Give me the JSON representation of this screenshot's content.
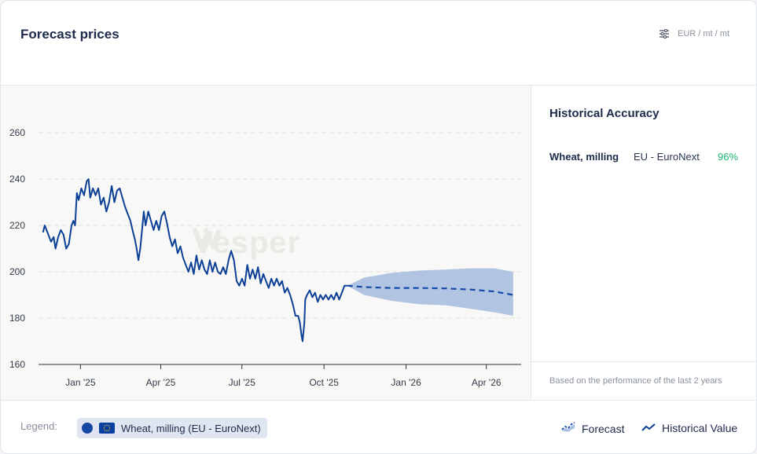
{
  "header": {
    "title": "Forecast prices",
    "unit": "EUR / mt / mt",
    "settings_icon": "sliders-icon"
  },
  "side": {
    "title": "Historical Accuracy",
    "row": {
      "name": "Wheat, milling",
      "market": "EU - EuroNext",
      "value": "96%"
    },
    "note": "Based on the performance of the last 2 years"
  },
  "watermark": {
    "text": "Vesper",
    "icon": "vesper-logo-icon"
  },
  "legend": {
    "label": "Legend:",
    "item": "Wheat, milling (EU - EuroNext)",
    "forecast_label": "Forecast",
    "history_label": "Historical Value"
  },
  "colors": {
    "history": "#0c3f96",
    "forecast_line": "#174aa6",
    "band": "#a9bfe1",
    "accuracy_good": "#22b573"
  },
  "chart_data": {
    "type": "line",
    "title": "",
    "xlabel": "",
    "ylabel": "",
    "ylim": [
      160,
      260
    ],
    "yticks": [
      160,
      180,
      200,
      220,
      240,
      260
    ],
    "xlim": [
      "2024-11-15",
      "2026-05-10"
    ],
    "xticks": [
      {
        "date": "2025-01-01",
        "label": "Jan '25"
      },
      {
        "date": "2025-04-01",
        "label": "Apr '25"
      },
      {
        "date": "2025-07-01",
        "label": "Jul '25"
      },
      {
        "date": "2025-10-01",
        "label": "Oct '25"
      },
      {
        "date": "2026-01-01",
        "label": "Jan '26"
      },
      {
        "date": "2026-04-01",
        "label": "Apr '26"
      }
    ],
    "grid": "horizontal",
    "series": [
      {
        "name": "Historical Value",
        "style": "solid",
        "points": [
          [
            "2024-11-20",
            217
          ],
          [
            "2024-11-22",
            220
          ],
          [
            "2024-11-26",
            216
          ],
          [
            "2024-11-29",
            213
          ],
          [
            "2024-12-02",
            215
          ],
          [
            "2024-12-04",
            210
          ],
          [
            "2024-12-07",
            215
          ],
          [
            "2024-12-10",
            218
          ],
          [
            "2024-12-13",
            216
          ],
          [
            "2024-12-16",
            210
          ],
          [
            "2024-12-19",
            212
          ],
          [
            "2024-12-22",
            220
          ],
          [
            "2024-12-24",
            222
          ],
          [
            "2024-12-26",
            220
          ],
          [
            "2024-12-28",
            234
          ],
          [
            "2024-12-30",
            231
          ],
          [
            "2025-01-02",
            236
          ],
          [
            "2025-01-05",
            233
          ],
          [
            "2025-01-08",
            239
          ],
          [
            "2025-01-10",
            240
          ],
          [
            "2025-01-12",
            232
          ],
          [
            "2025-01-15",
            236
          ],
          [
            "2025-01-18",
            233
          ],
          [
            "2025-01-21",
            236
          ],
          [
            "2025-01-24",
            229
          ],
          [
            "2025-01-27",
            232
          ],
          [
            "2025-01-30",
            226
          ],
          [
            "2025-02-02",
            230
          ],
          [
            "2025-02-05",
            237
          ],
          [
            "2025-02-08",
            230
          ],
          [
            "2025-02-11",
            235
          ],
          [
            "2025-02-14",
            236
          ],
          [
            "2025-02-17",
            232
          ],
          [
            "2025-02-20",
            228
          ],
          [
            "2025-02-23",
            225
          ],
          [
            "2025-02-26",
            222
          ],
          [
            "2025-03-01",
            217
          ],
          [
            "2025-03-03",
            214
          ],
          [
            "2025-03-05",
            210
          ],
          [
            "2025-03-07",
            205
          ],
          [
            "2025-03-09",
            210
          ],
          [
            "2025-03-11",
            218
          ],
          [
            "2025-03-13",
            226
          ],
          [
            "2025-03-15",
            220
          ],
          [
            "2025-03-18",
            226
          ],
          [
            "2025-03-21",
            222
          ],
          [
            "2025-03-24",
            218
          ],
          [
            "2025-03-27",
            222
          ],
          [
            "2025-03-30",
            218
          ],
          [
            "2025-04-02",
            224
          ],
          [
            "2025-04-05",
            226
          ],
          [
            "2025-04-08",
            221
          ],
          [
            "2025-04-11",
            215
          ],
          [
            "2025-04-14",
            211
          ],
          [
            "2025-04-17",
            214
          ],
          [
            "2025-04-20",
            208
          ],
          [
            "2025-04-23",
            211
          ],
          [
            "2025-04-26",
            206
          ],
          [
            "2025-04-29",
            203
          ],
          [
            "2025-05-02",
            200
          ],
          [
            "2025-05-05",
            204
          ],
          [
            "2025-05-08",
            199
          ],
          [
            "2025-05-11",
            207
          ],
          [
            "2025-05-14",
            201
          ],
          [
            "2025-05-17",
            205
          ],
          [
            "2025-05-20",
            201
          ],
          [
            "2025-05-23",
            199
          ],
          [
            "2025-05-26",
            205
          ],
          [
            "2025-05-29",
            200
          ],
          [
            "2025-06-01",
            204
          ],
          [
            "2025-06-04",
            200
          ],
          [
            "2025-06-07",
            199
          ],
          [
            "2025-06-10",
            202
          ],
          [
            "2025-06-13",
            199
          ],
          [
            "2025-06-16",
            205
          ],
          [
            "2025-06-19",
            209
          ],
          [
            "2025-06-22",
            205
          ],
          [
            "2025-06-25",
            196
          ],
          [
            "2025-06-28",
            194
          ],
          [
            "2025-07-01",
            197
          ],
          [
            "2025-07-04",
            194
          ],
          [
            "2025-07-07",
            203
          ],
          [
            "2025-07-10",
            197
          ],
          [
            "2025-07-13",
            201
          ],
          [
            "2025-07-16",
            197
          ],
          [
            "2025-07-19",
            202
          ],
          [
            "2025-07-22",
            195
          ],
          [
            "2025-07-25",
            199
          ],
          [
            "2025-07-28",
            196
          ],
          [
            "2025-07-31",
            193
          ],
          [
            "2025-08-03",
            197
          ],
          [
            "2025-08-06",
            194
          ],
          [
            "2025-08-09",
            197
          ],
          [
            "2025-08-12",
            194
          ],
          [
            "2025-08-15",
            196
          ],
          [
            "2025-08-18",
            191
          ],
          [
            "2025-08-21",
            193
          ],
          [
            "2025-08-24",
            190
          ],
          [
            "2025-08-27",
            186
          ],
          [
            "2025-08-30",
            181
          ],
          [
            "2025-09-02",
            181
          ],
          [
            "2025-09-04",
            178
          ],
          [
            "2025-09-06",
            172
          ],
          [
            "2025-09-07",
            170
          ],
          [
            "2025-09-09",
            178
          ],
          [
            "2025-09-10",
            188
          ],
          [
            "2025-09-12",
            190
          ],
          [
            "2025-09-15",
            192
          ],
          [
            "2025-09-18",
            189
          ],
          [
            "2025-09-21",
            191
          ],
          [
            "2025-09-24",
            187
          ],
          [
            "2025-09-27",
            190
          ],
          [
            "2025-09-30",
            188
          ],
          [
            "2025-10-03",
            190
          ],
          [
            "2025-10-06",
            188
          ],
          [
            "2025-10-09",
            190
          ],
          [
            "2025-10-12",
            188
          ],
          [
            "2025-10-15",
            191
          ],
          [
            "2025-10-18",
            188
          ],
          [
            "2025-10-21",
            191
          ],
          [
            "2025-10-24",
            194
          ],
          [
            "2025-10-27",
            194
          ]
        ]
      },
      {
        "name": "Forecast",
        "style": "dashed",
        "points": [
          [
            "2025-10-27",
            194
          ],
          [
            "2025-11-15",
            193.4
          ],
          [
            "2025-12-15",
            193
          ],
          [
            "2026-01-15",
            193
          ],
          [
            "2026-02-15",
            192.8
          ],
          [
            "2026-03-15",
            192.3
          ],
          [
            "2026-04-10",
            191.5
          ],
          [
            "2026-05-01",
            190
          ]
        ],
        "band_upper": [
          194,
          197.5,
          199.5,
          200.5,
          201,
          201.5,
          201.5,
          200
        ],
        "band_lower": [
          194,
          190,
          187.5,
          186,
          185.5,
          184,
          182.5,
          181
        ]
      }
    ]
  }
}
